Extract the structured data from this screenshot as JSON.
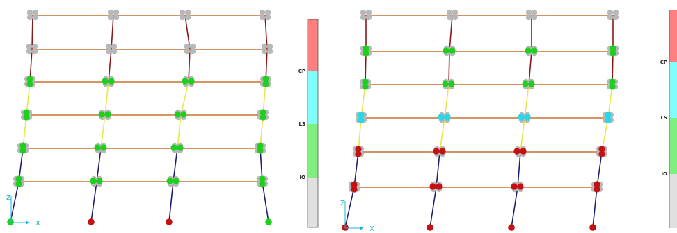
{
  "legend": {
    "levels": [
      {
        "key": "IO",
        "label": "IO",
        "color": "#e0e0e0"
      },
      {
        "key": "LS",
        "label": "LS",
        "color": "#7ff07f"
      },
      {
        "key": "CP",
        "label": "CP",
        "color": "#80fdfd"
      },
      {
        "key": "C",
        "label": "",
        "color": "#fd7f7f"
      }
    ]
  },
  "axes": {
    "x_label": "X",
    "z_label": "Z",
    "color": "#19b6d6"
  },
  "colors": {
    "beam": "#c8702e",
    "column_lower": "#1b1f6e",
    "column_mid": "#e8e84a",
    "column_upper": "#8a1a1a",
    "hinge_none": "#b8b8b8",
    "hinge_io": "#1ed01e",
    "hinge_ls": "#27d7e7",
    "hinge_cp": "#c41010"
  },
  "frames": [
    {
      "id": "left",
      "hinges": {
        "F1": "io",
        "F2": "io",
        "F3": "io",
        "F4": "io",
        "F5": "none",
        "F6": "none"
      },
      "bases": [
        "io",
        "cp",
        "cp",
        "io"
      ]
    },
    {
      "id": "right",
      "hinges": {
        "F1": "cp",
        "F2": "cp",
        "F3": "ls",
        "F4": "io",
        "F5": "io",
        "F6": "none"
      },
      "bases": [
        "cp",
        "cp",
        "cp",
        "cp"
      ]
    }
  ]
}
